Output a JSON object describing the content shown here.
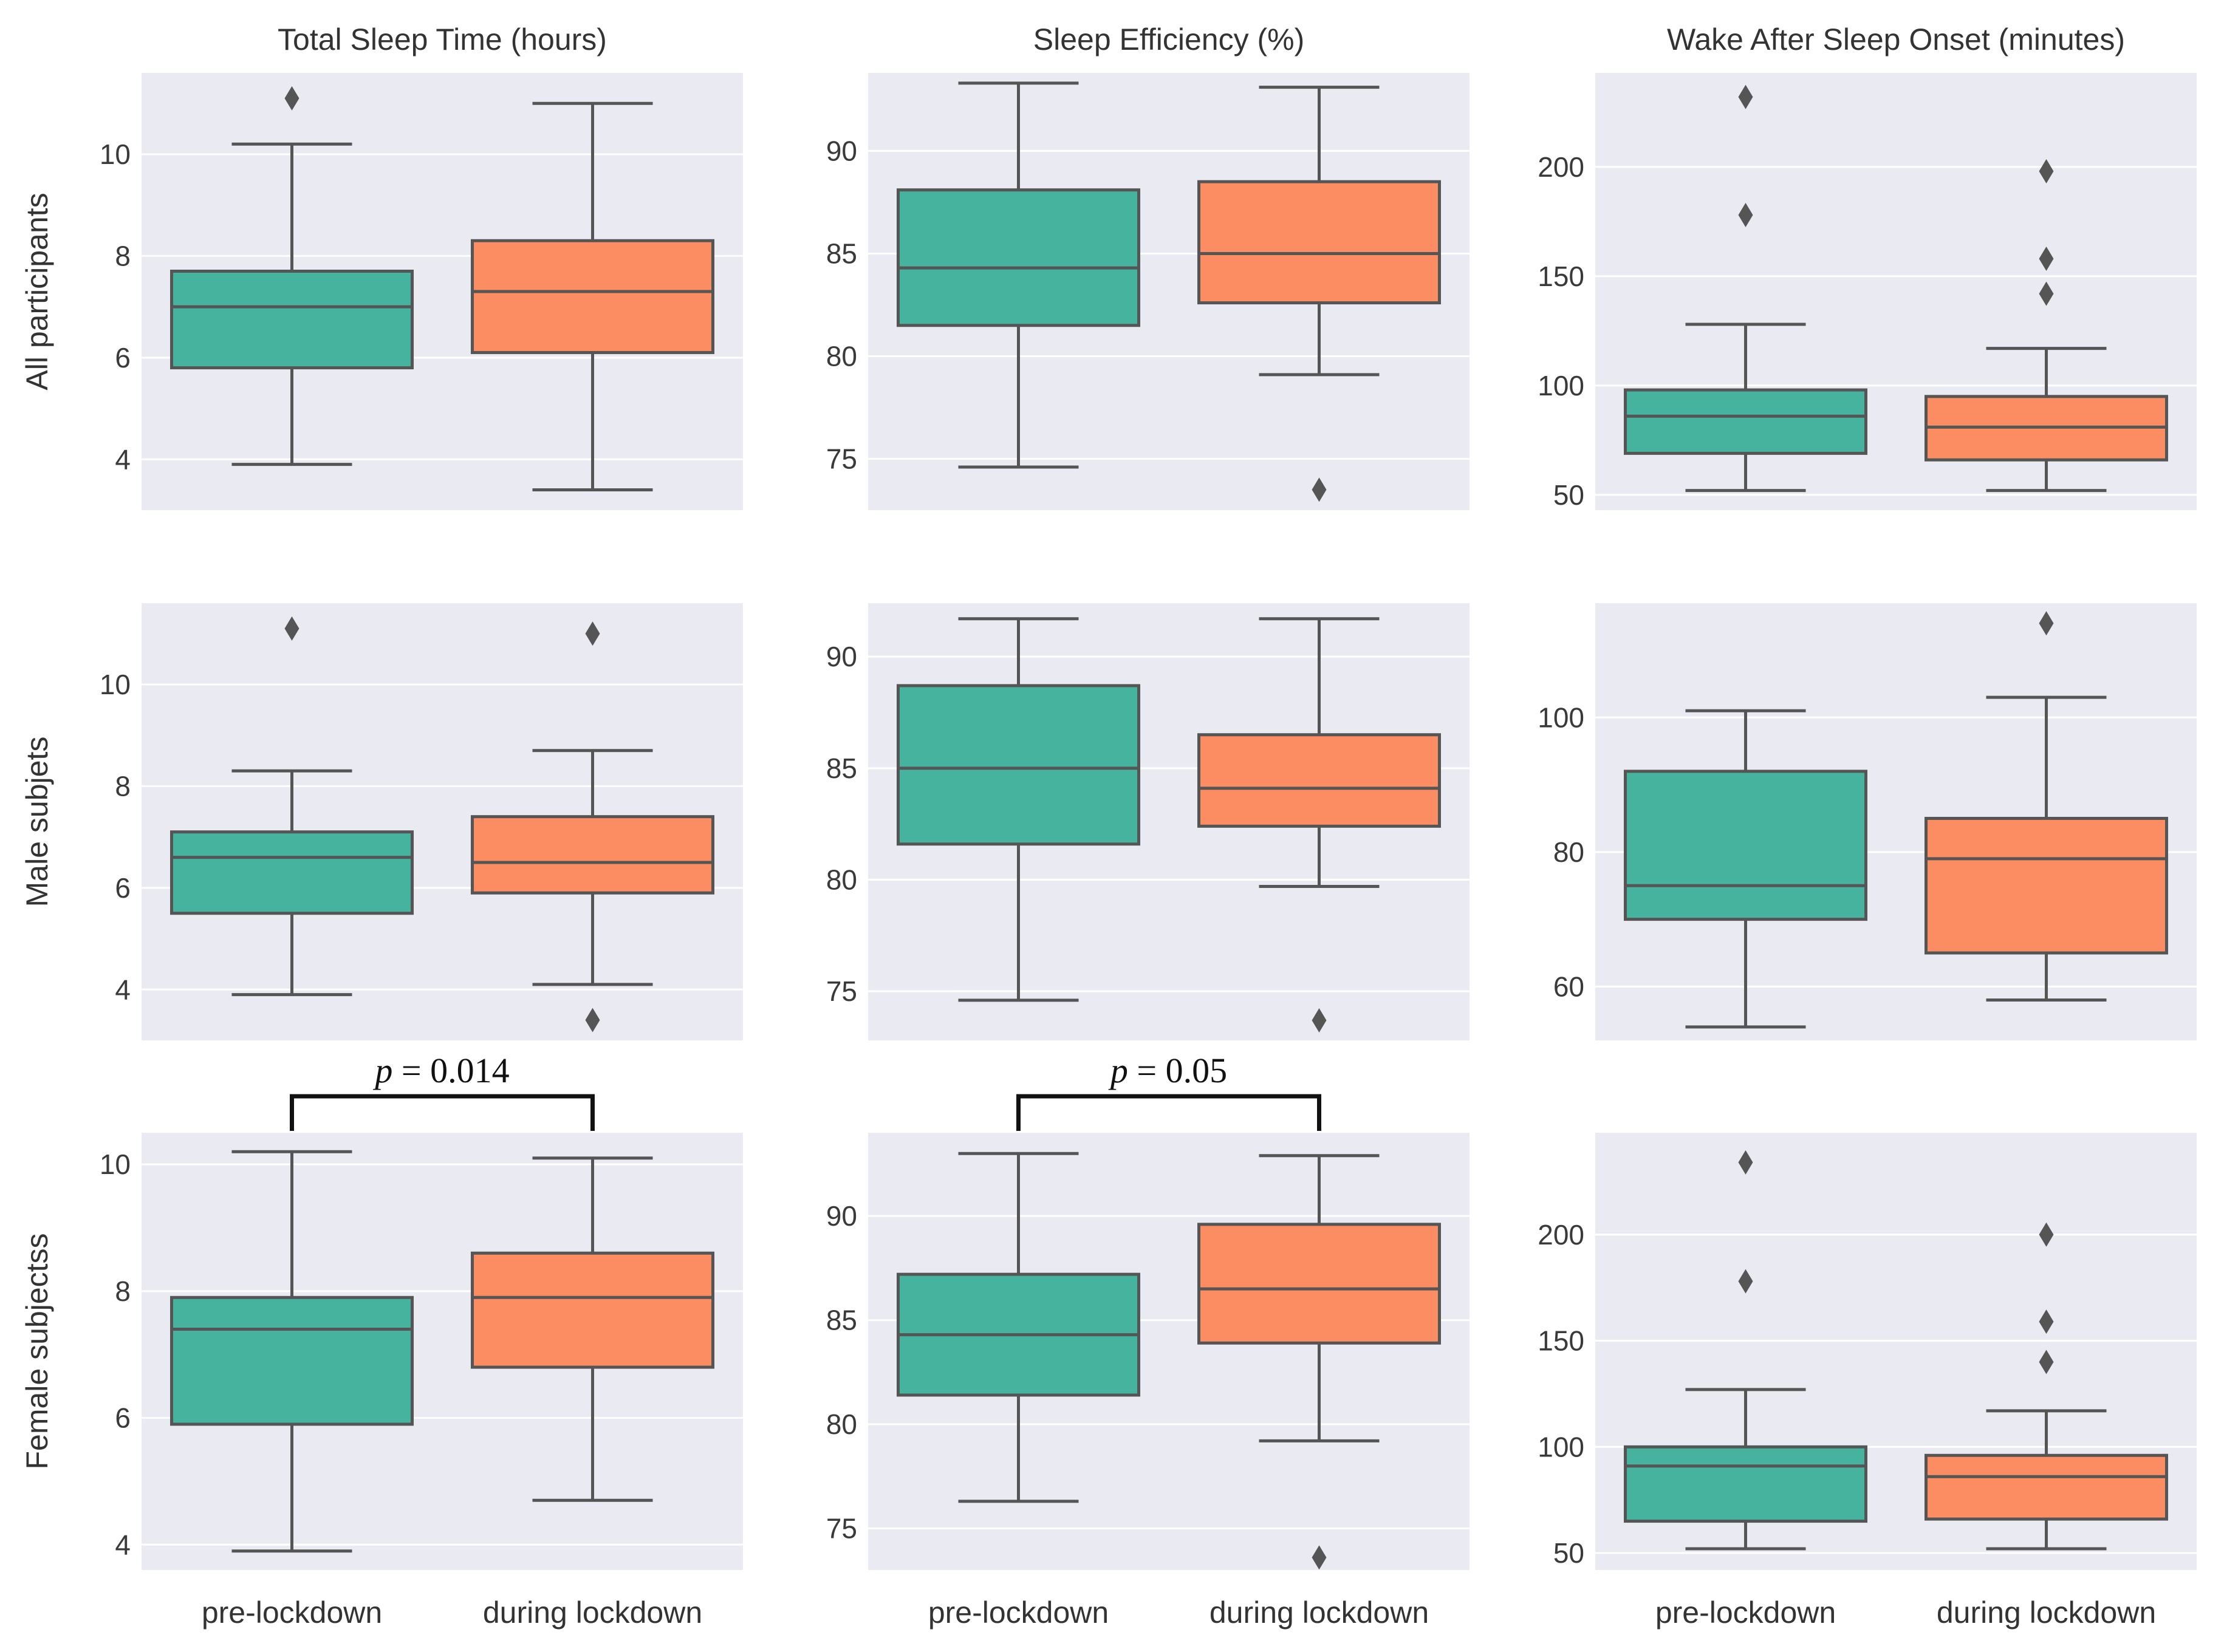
{
  "colors": {
    "panel_bg": "#eaeaf2",
    "grid": "#ffffff",
    "pre": "#45b39d",
    "during": "#fc8d62",
    "line": "#555555"
  },
  "chart_data": {
    "type": "box",
    "categories": [
      "pre-lockdown",
      "during lockdown"
    ],
    "columns": [
      "Total Sleep Time (hours)",
      "Sleep Efficiency (%)",
      "Wake After Sleep Onset (minutes)"
    ],
    "rows": [
      "All participants",
      "Male subjets",
      "Female subjectss"
    ],
    "panels": [
      {
        "row": 0,
        "col": 0,
        "ylim": [
          3.0,
          11.6
        ],
        "yticks": [
          4,
          6,
          8,
          10
        ],
        "grid": true,
        "boxes": [
          {
            "category": "pre-lockdown",
            "whisker_low": 3.9,
            "q1": 5.8,
            "median": 7.0,
            "q3": 7.7,
            "whisker_high": 10.2,
            "outliers": [
              11.1
            ]
          },
          {
            "category": "during lockdown",
            "whisker_low": 3.4,
            "q1": 6.1,
            "median": 7.3,
            "q3": 8.3,
            "whisker_high": 11.0,
            "outliers": []
          }
        ]
      },
      {
        "row": 0,
        "col": 1,
        "ylim": [
          72.5,
          93.8
        ],
        "yticks": [
          75,
          80,
          85,
          90
        ],
        "grid": true,
        "boxes": [
          {
            "category": "pre-lockdown",
            "whisker_low": 74.6,
            "q1": 81.5,
            "median": 84.3,
            "q3": 88.1,
            "whisker_high": 93.3,
            "outliers": []
          },
          {
            "category": "during lockdown",
            "whisker_low": 79.1,
            "q1": 82.6,
            "median": 85.0,
            "q3": 88.5,
            "whisker_high": 93.1,
            "outliers": [
              73.5
            ]
          }
        ]
      },
      {
        "row": 0,
        "col": 2,
        "ylim": [
          43,
          243
        ],
        "yticks": [
          50,
          100,
          150,
          200
        ],
        "grid": true,
        "boxes": [
          {
            "category": "pre-lockdown",
            "whisker_low": 52,
            "q1": 69,
            "median": 86,
            "q3": 98,
            "whisker_high": 128,
            "outliers": [
              178,
              232
            ]
          },
          {
            "category": "during lockdown",
            "whisker_low": 52,
            "q1": 66,
            "median": 81,
            "q3": 95,
            "whisker_high": 117,
            "outliers": [
              142,
              158,
              198
            ]
          }
        ]
      },
      {
        "row": 1,
        "col": 0,
        "ylim": [
          3.0,
          11.6
        ],
        "yticks": [
          4,
          6,
          8,
          10
        ],
        "grid": true,
        "boxes": [
          {
            "category": "pre-lockdown",
            "whisker_low": 3.9,
            "q1": 5.5,
            "median": 6.6,
            "q3": 7.1,
            "whisker_high": 8.3,
            "outliers": [
              11.1
            ]
          },
          {
            "category": "during lockdown",
            "whisker_low": 4.1,
            "q1": 5.9,
            "median": 6.5,
            "q3": 7.4,
            "whisker_high": 8.7,
            "outliers": [
              3.4,
              11.0
            ]
          }
        ]
      },
      {
        "row": 1,
        "col": 1,
        "ylim": [
          72.8,
          92.4
        ],
        "yticks": [
          75,
          80,
          85,
          90
        ],
        "grid": true,
        "boxes": [
          {
            "category": "pre-lockdown",
            "whisker_low": 74.6,
            "q1": 81.6,
            "median": 85.0,
            "q3": 88.7,
            "whisker_high": 91.7,
            "outliers": []
          },
          {
            "category": "during lockdown",
            "whisker_low": 79.7,
            "q1": 82.4,
            "median": 84.1,
            "q3": 86.5,
            "whisker_high": 91.7,
            "outliers": [
              73.7
            ]
          }
        ]
      },
      {
        "row": 1,
        "col": 2,
        "ylim": [
          52,
          117
        ],
        "yticks": [
          60,
          80,
          100
        ],
        "grid": true,
        "boxes": [
          {
            "category": "pre-lockdown",
            "whisker_low": 54,
            "q1": 70,
            "median": 75,
            "q3": 92,
            "whisker_high": 101,
            "outliers": []
          },
          {
            "category": "during lockdown",
            "whisker_low": 58,
            "q1": 65,
            "median": 79,
            "q3": 85,
            "whisker_high": 103,
            "outliers": [
              114
            ]
          }
        ]
      },
      {
        "row": 2,
        "col": 0,
        "ylim": [
          3.6,
          10.5
        ],
        "yticks": [
          4,
          6,
          8,
          10
        ],
        "grid": true,
        "boxes": [
          {
            "category": "pre-lockdown",
            "whisker_low": 3.9,
            "q1": 5.9,
            "median": 7.4,
            "q3": 7.9,
            "whisker_high": 10.2,
            "outliers": []
          },
          {
            "category": "during lockdown",
            "whisker_low": 4.7,
            "q1": 6.8,
            "median": 7.9,
            "q3": 8.6,
            "whisker_high": 10.1,
            "outliers": []
          }
        ]
      },
      {
        "row": 2,
        "col": 1,
        "ylim": [
          73.0,
          94.0
        ],
        "yticks": [
          75,
          80,
          85,
          90
        ],
        "grid": true,
        "boxes": [
          {
            "category": "pre-lockdown",
            "whisker_low": 76.3,
            "q1": 81.4,
            "median": 84.3,
            "q3": 87.2,
            "whisker_high": 93.0,
            "outliers": []
          },
          {
            "category": "during lockdown",
            "whisker_low": 79.2,
            "q1": 83.9,
            "median": 86.5,
            "q3": 89.6,
            "whisker_high": 92.9,
            "outliers": [
              73.6
            ]
          }
        ]
      },
      {
        "row": 2,
        "col": 2,
        "ylim": [
          42,
          248
        ],
        "yticks": [
          50,
          100,
          150,
          200
        ],
        "grid": true,
        "boxes": [
          {
            "category": "pre-lockdown",
            "whisker_low": 52,
            "q1": 65,
            "median": 91,
            "q3": 100,
            "whisker_high": 127,
            "outliers": [
              178,
              234
            ]
          },
          {
            "category": "during lockdown",
            "whisker_low": 52,
            "q1": 66,
            "median": 86,
            "q3": 96,
            "whisker_high": 117,
            "outliers": [
              140,
              159,
              200
            ]
          }
        ]
      }
    ],
    "annotations": [
      {
        "col": 0,
        "row": 2,
        "text_prefix": "p",
        "text_rest": " = 0.014"
      },
      {
        "col": 1,
        "row": 2,
        "text_prefix": "p",
        "text_rest": " = 0.05"
      }
    ]
  }
}
